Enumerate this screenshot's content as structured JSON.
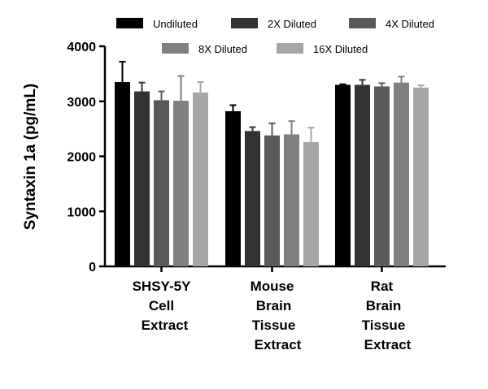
{
  "chart_data": {
    "type": "bar",
    "ylabel": "Syntaxin 1a (pg/mL)",
    "xlabel": "",
    "ylim": [
      0,
      4000
    ],
    "yticks": [
      0,
      1000,
      2000,
      3000,
      4000
    ],
    "categories": [
      [
        "SHSY-5Y",
        "Cell",
        "Extract"
      ],
      [
        "Mouse",
        "Brain",
        "Tissue",
        "Extract"
      ],
      [
        "Rat",
        "Brain",
        "Tissue",
        "Extract"
      ]
    ],
    "series": [
      {
        "name": "Undiluted",
        "color": "#000000",
        "values": [
          3350,
          2820,
          3300
        ],
        "errors": [
          370,
          110,
          10
        ]
      },
      {
        "name": "2X Diluted",
        "color": "#333333",
        "values": [
          3180,
          2460,
          3300
        ],
        "errors": [
          160,
          70,
          90
        ]
      },
      {
        "name": "4X Diluted",
        "color": "#5a5a5a",
        "values": [
          3020,
          2380,
          3270
        ],
        "errors": [
          160,
          220,
          60
        ]
      },
      {
        "name": "8X Diluted",
        "color": "#808080",
        "values": [
          3010,
          2400,
          3340
        ],
        "errors": [
          450,
          240,
          110
        ]
      },
      {
        "name": "16X Diluted",
        "color": "#a6a6a6",
        "values": [
          3160,
          2260,
          3250
        ],
        "errors": [
          190,
          260,
          40
        ]
      }
    ],
    "legend_position": "top"
  }
}
